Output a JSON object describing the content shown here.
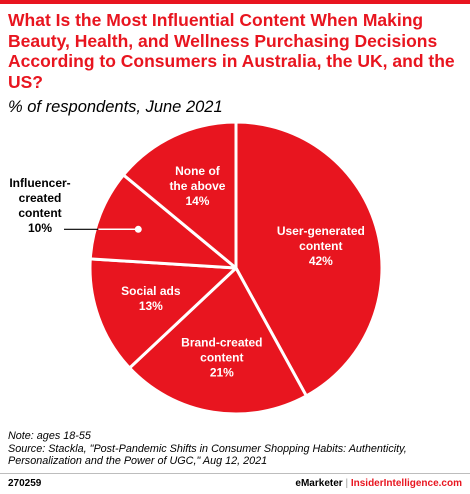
{
  "header": {
    "title": "What Is the Most Influential Content When Making Beauty, Health, and Wellness Purchasing Decisions According to Consumers in Australia, the UK, and the US?",
    "subtitle": "% of respondents, June 2021"
  },
  "colors": {
    "accent": "#e8151f",
    "slice": "#e8151f",
    "slice_border": "#ffffff"
  },
  "chart_data": {
    "type": "pie",
    "unit": "%",
    "slices": [
      {
        "name": "User-generated content",
        "label_lines": [
          "User-generated",
          "content"
        ],
        "value": 42,
        "value_label": "42%"
      },
      {
        "name": "Brand-created content",
        "label_lines": [
          "Brand-created",
          "content"
        ],
        "value": 21,
        "value_label": "21%"
      },
      {
        "name": "Social ads",
        "label_lines": [
          "Social ads"
        ],
        "value": 13,
        "value_label": "13%"
      },
      {
        "name": "Influencer-created content",
        "label_lines": [
          "Influencer-",
          "created",
          "content"
        ],
        "value": 10,
        "value_label": "10%",
        "callout": true
      },
      {
        "name": "None of the above",
        "label_lines": [
          "None of",
          "the above"
        ],
        "value": 14,
        "value_label": "14%"
      }
    ]
  },
  "notes": {
    "note": "Note: ages 18-55",
    "source": "Source: Stackla, \"Post-Pandemic Shifts in Consumer Shopping Habits: Authenticity, Personalization and the Power of UGC,\" Aug 12, 2021"
  },
  "footer": {
    "id": "270259",
    "brand_a": "eMarketer",
    "separator": "|",
    "brand_b": "InsiderIntelligence.com"
  }
}
